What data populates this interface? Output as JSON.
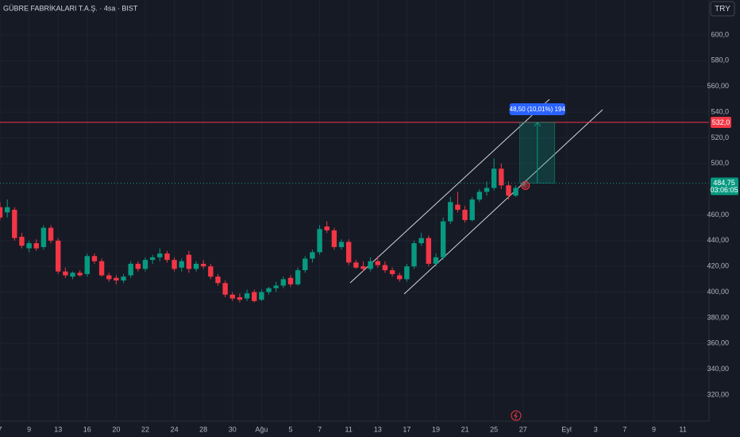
{
  "chart_data": {
    "type": "candlestick",
    "title": "GÜBRE FABRİKALARI T.A.Ş. · 4sa · BIST",
    "currency": "TRY",
    "up_color": "#089981",
    "down_color": "#f23645",
    "open": [
      466,
      462,
      464,
      443,
      434,
      438,
      435,
      450,
      440,
      416,
      412,
      415,
      414,
      428,
      424,
      413,
      411,
      409,
      413,
      422,
      418,
      425,
      427,
      430,
      425,
      419,
      429,
      418,
      422,
      420,
      412,
      407,
      398,
      396,
      395,
      400,
      394,
      400,
      403,
      405,
      411,
      406,
      417,
      426,
      431,
      451,
      448,
      435,
      439,
      423,
      420,
      418,
      424,
      421,
      417,
      413,
      410,
      420,
      438,
      442,
      422,
      427,
      455,
      468,
      464,
      456,
      472,
      478,
      481,
      496,
      483,
      475,
      483
    ],
    "high": [
      470,
      472,
      466,
      446,
      440,
      441,
      452,
      452,
      442,
      419,
      416,
      417,
      430,
      430,
      426,
      415,
      413,
      414,
      424,
      424,
      427,
      429,
      434,
      432,
      427,
      426,
      432,
      424,
      425,
      422,
      414,
      409,
      400,
      399,
      402,
      402,
      402,
      404,
      408,
      412,
      413,
      419,
      428,
      433,
      452,
      455,
      450,
      441,
      441,
      425,
      424,
      427,
      428,
      424,
      419,
      415,
      422,
      440,
      446,
      444,
      430,
      458,
      474,
      478,
      467,
      474,
      480,
      486,
      504,
      500,
      486,
      483,
      486
    ],
    "low": [
      456,
      458,
      440,
      434,
      431,
      432,
      433,
      438,
      414,
      411,
      410,
      412,
      412,
      422,
      412,
      408,
      406,
      407,
      411,
      416,
      416,
      422,
      424,
      423,
      416,
      416,
      415,
      416,
      418,
      410,
      405,
      396,
      393,
      392,
      393,
      392,
      393,
      398,
      400,
      403,
      404,
      405,
      415,
      423,
      429,
      446,
      433,
      433,
      421,
      418,
      416,
      416,
      419,
      415,
      412,
      408,
      408,
      418,
      436,
      420,
      420,
      425,
      453,
      462,
      454,
      455,
      470,
      475,
      479,
      480,
      472,
      474,
      482
    ],
    "close": [
      458,
      466,
      442,
      436,
      438,
      434,
      450,
      440,
      416,
      413,
      415,
      413,
      428,
      424,
      413,
      410,
      409,
      412,
      422,
      418,
      425,
      427,
      430,
      425,
      418,
      424,
      418,
      422,
      420,
      412,
      407,
      398,
      395,
      394,
      399,
      393,
      400,
      403,
      405,
      410,
      406,
      417,
      426,
      431,
      449,
      448,
      435,
      439,
      423,
      419,
      418,
      424,
      421,
      417,
      414,
      410,
      420,
      438,
      442,
      422,
      427,
      455,
      470,
      464,
      456,
      472,
      478,
      481,
      496,
      483,
      475,
      481,
      484.75
    ],
    "xlim": [
      0,
      97.6
    ],
    "xticks": [
      {
        "value": 0,
        "label": "7"
      },
      {
        "value": 4,
        "label": "9"
      },
      {
        "value": 8,
        "label": "13"
      },
      {
        "value": 12,
        "label": "16"
      },
      {
        "value": 16,
        "label": "20"
      },
      {
        "value": 20,
        "label": "22"
      },
      {
        "value": 24,
        "label": "24"
      },
      {
        "value": 28,
        "label": "28"
      },
      {
        "value": 32,
        "label": "30"
      },
      {
        "value": 36,
        "label": "Ağu"
      },
      {
        "value": 40,
        "label": "5"
      },
      {
        "value": 44,
        "label": "7"
      },
      {
        "value": 48,
        "label": "11"
      },
      {
        "value": 52,
        "label": "13"
      },
      {
        "value": 56,
        "label": "17"
      },
      {
        "value": 60,
        "label": "19"
      },
      {
        "value": 64,
        "label": "21"
      },
      {
        "value": 68,
        "label": "25"
      },
      {
        "value": 72,
        "label": "27"
      },
      {
        "value": 78,
        "label": "Eyl"
      },
      {
        "value": 82,
        "label": "3"
      },
      {
        "value": 86,
        "label": "7"
      },
      {
        "value": 90,
        "label": "9"
      },
      {
        "value": 94,
        "label": "11"
      }
    ],
    "ylim": [
      299.6,
      627.2
    ],
    "yticks": [
      {
        "value": 320,
        "label": "320,00"
      },
      {
        "value": 340,
        "label": "340,00"
      },
      {
        "value": 360,
        "label": "360,00"
      },
      {
        "value": 380,
        "label": "380,00"
      },
      {
        "value": 400,
        "label": "400,00"
      },
      {
        "value": 420,
        "label": "420,00"
      },
      {
        "value": 440,
        "label": "440,00"
      },
      {
        "value": 460,
        "label": "460,00"
      },
      {
        "value": 500,
        "label": "500,0"
      },
      {
        "value": 520,
        "label": "520,0"
      },
      {
        "value": 540,
        "label": "540,0"
      },
      {
        "value": 560,
        "label": "560,00"
      },
      {
        "value": 580,
        "label": "580,0"
      },
      {
        "value": 600,
        "label": "600,0"
      }
    ],
    "grid": true,
    "alert_level": {
      "value": 532,
      "label": "532,0"
    },
    "last_price": {
      "value": 484.75,
      "label": "484,75"
    },
    "countdown": "03:06:05",
    "measure_label": "48,50 (10,01%) 194",
    "marker": "D"
  }
}
